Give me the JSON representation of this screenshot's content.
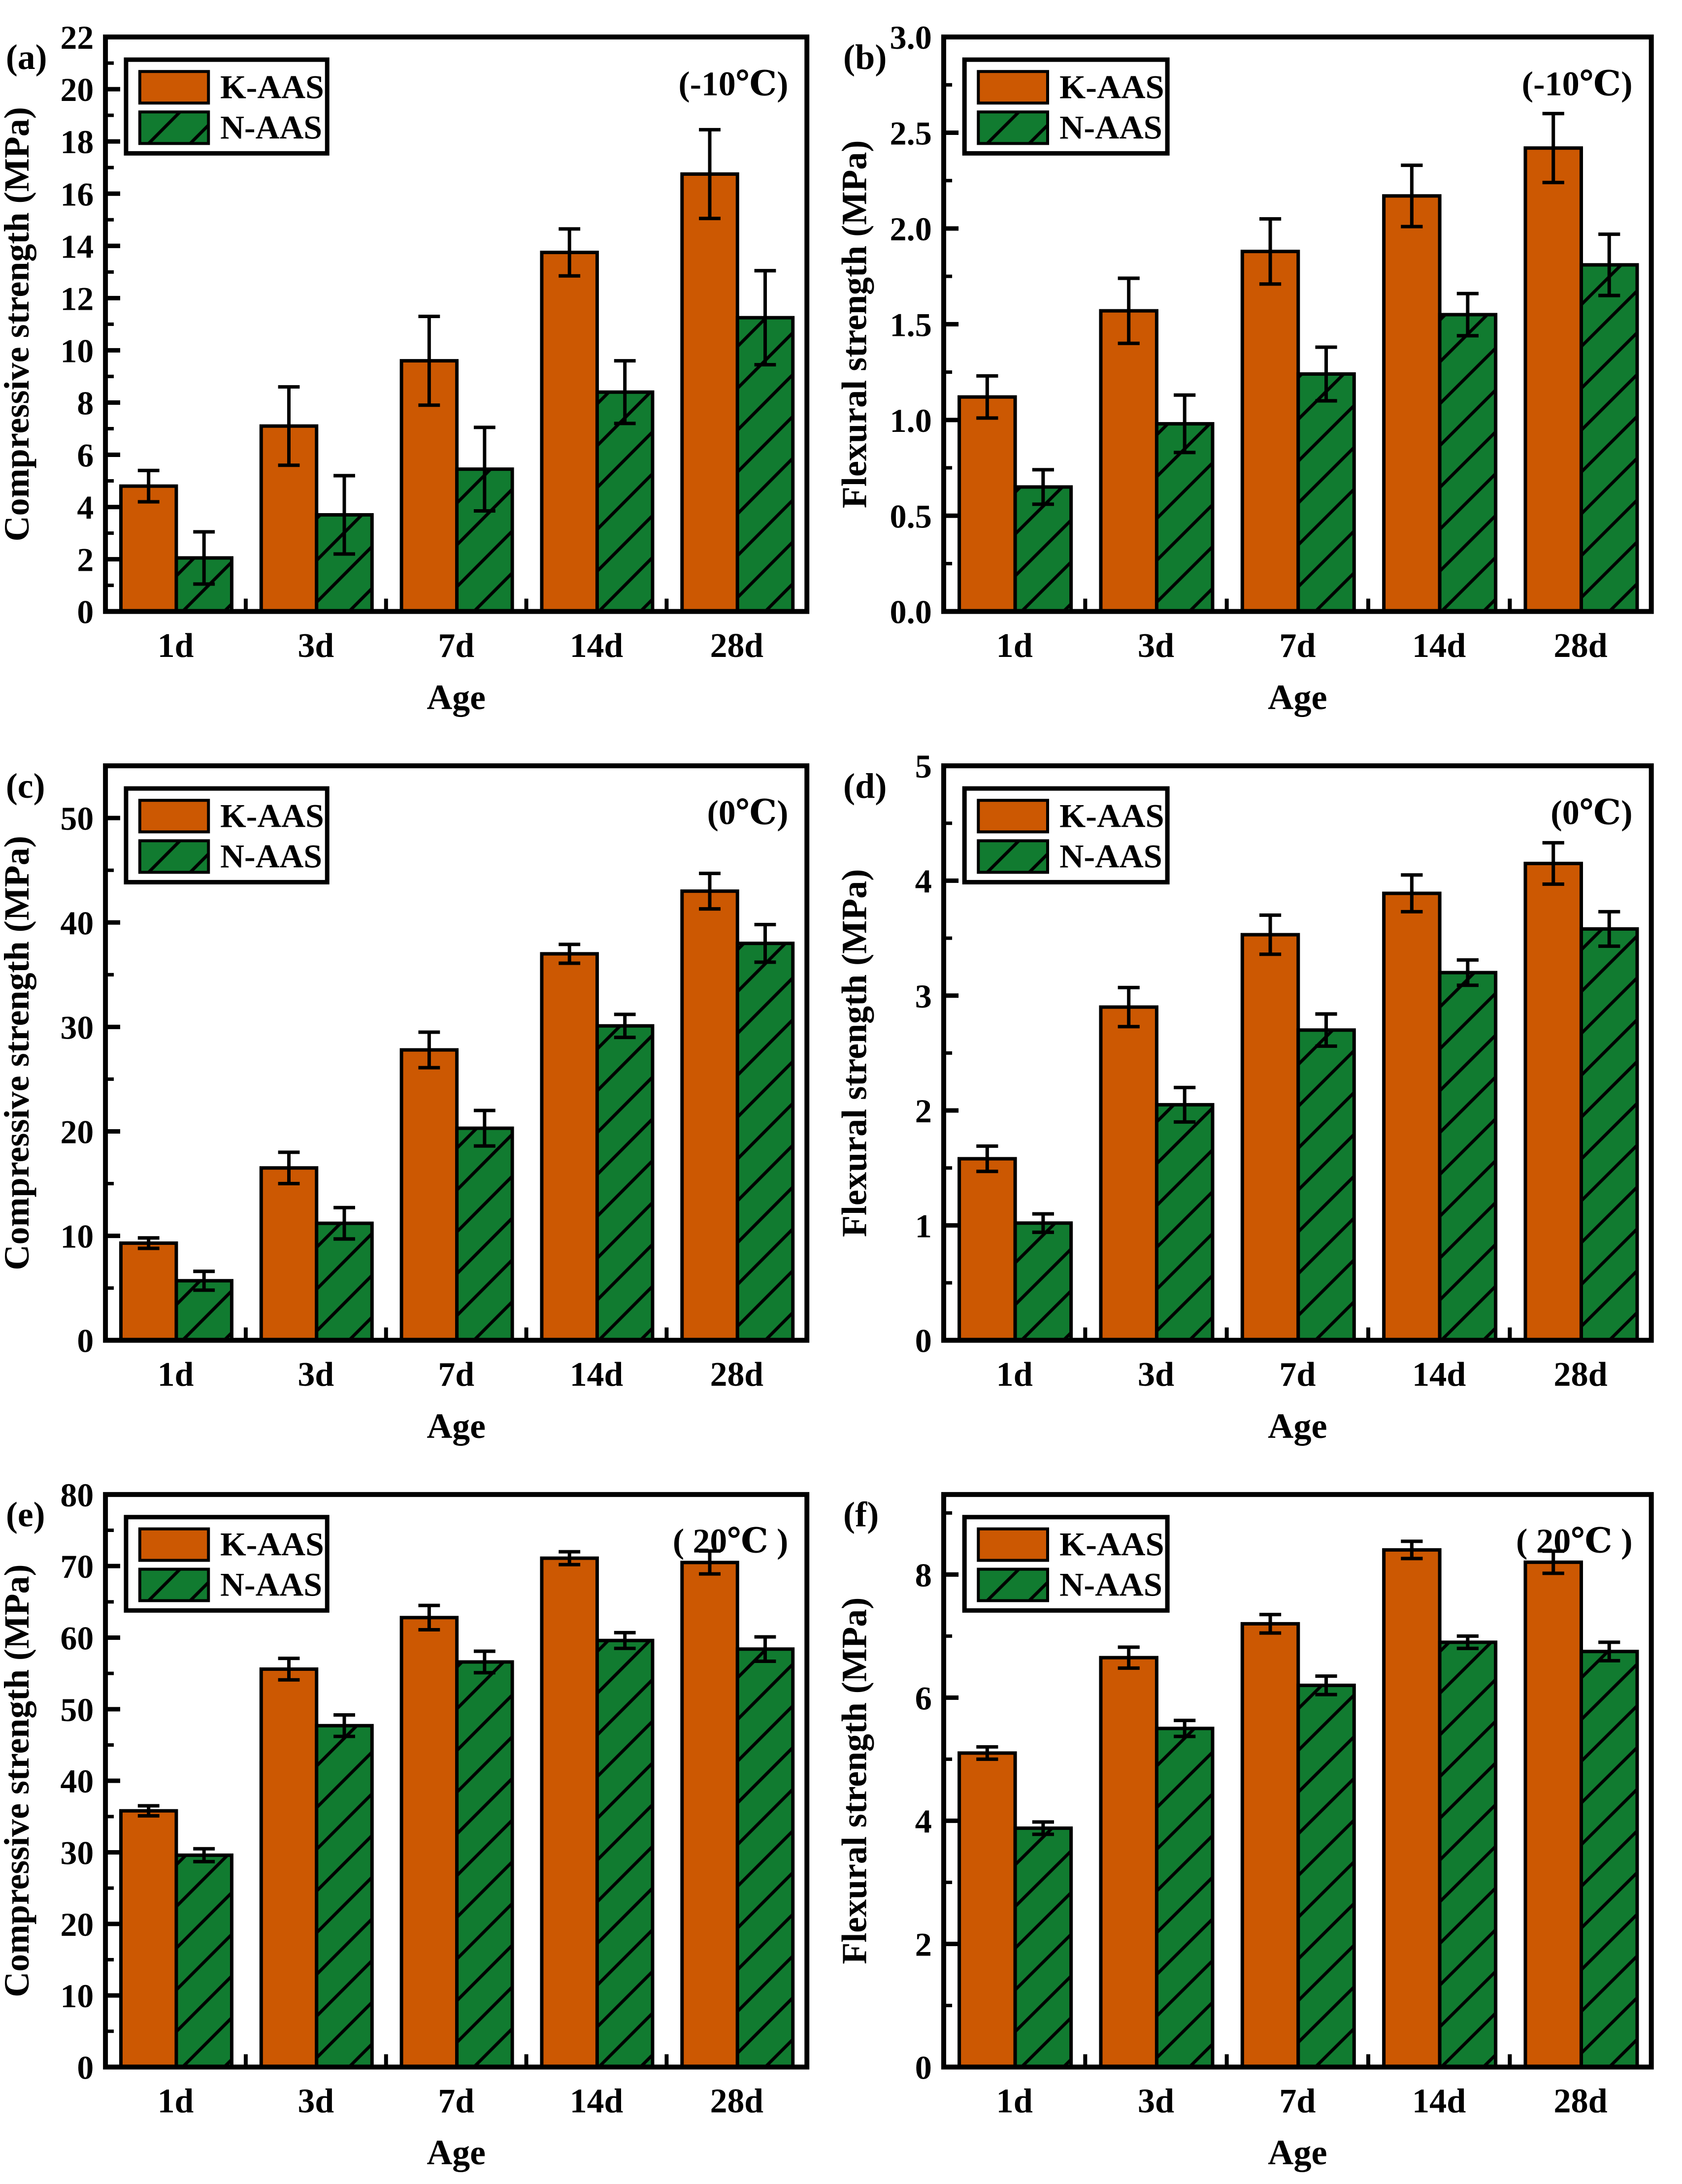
{
  "figure": {
    "colors": {
      "k_aas_fill": "#CC5802",
      "n_aas_fill": "#117B30",
      "axis": "#000000",
      "background": "#FFFFFF"
    },
    "series_names": [
      "K-AAS",
      "N-AAS"
    ]
  },
  "chart_data": [
    {
      "type": "bar",
      "panel_label": "(a)",
      "annotation": "(-10℃)",
      "ylabel": "Compressive strength (MPa)",
      "xlabel": "Age",
      "categories": [
        "1d",
        "3d",
        "7d",
        "14d",
        "28d"
      ],
      "series": [
        {
          "name": "K-AAS",
          "values": [
            4.8,
            7.1,
            9.6,
            13.75,
            16.75
          ],
          "errors": [
            0.6,
            1.5,
            1.7,
            0.9,
            1.7
          ]
        },
        {
          "name": "N-AAS",
          "values": [
            2.05,
            3.7,
            5.45,
            8.4,
            11.25
          ],
          "errors": [
            1.0,
            1.5,
            1.6,
            1.2,
            1.8
          ]
        }
      ],
      "ylim": [
        0,
        22
      ],
      "ytick_major": 2,
      "ytick_minor": 1,
      "ytick_decimals": 0,
      "legend_position": "top-left",
      "grid": false
    },
    {
      "type": "bar",
      "panel_label": "(b)",
      "annotation": "(-10℃)",
      "ylabel": "Flexural strength (MPa)",
      "xlabel": "Age",
      "categories": [
        "1d",
        "3d",
        "7d",
        "14d",
        "28d"
      ],
      "series": [
        {
          "name": "K-AAS",
          "values": [
            1.12,
            1.57,
            1.88,
            2.17,
            2.42
          ],
          "errors": [
            0.11,
            0.17,
            0.17,
            0.16,
            0.18
          ]
        },
        {
          "name": "N-AAS",
          "values": [
            0.65,
            0.98,
            1.24,
            1.55,
            1.81
          ],
          "errors": [
            0.09,
            0.15,
            0.14,
            0.11,
            0.16
          ]
        }
      ],
      "ylim": [
        0,
        3.0
      ],
      "ytick_major": 0.5,
      "ytick_minor": 0.25,
      "ytick_decimals": 1,
      "legend_position": "top-left",
      "grid": false
    },
    {
      "type": "bar",
      "panel_label": "(c)",
      "annotation": "(0℃)",
      "ylabel": "Compressive strength (MPa)",
      "xlabel": "Age",
      "categories": [
        "1d",
        "3d",
        "7d",
        "14d",
        "28d"
      ],
      "series": [
        {
          "name": "K-AAS",
          "values": [
            9.3,
            16.5,
            27.8,
            37.0,
            43.0
          ],
          "errors": [
            0.5,
            1.5,
            1.7,
            0.9,
            1.7
          ]
        },
        {
          "name": "N-AAS",
          "values": [
            5.7,
            11.2,
            20.3,
            30.1,
            38.0
          ],
          "errors": [
            0.9,
            1.5,
            1.7,
            1.1,
            1.8
          ]
        }
      ],
      "ylim": [
        0,
        55
      ],
      "ytick_major": 10,
      "ytick_minor": 5,
      "ytick_decimals": 0,
      "legend_position": "top-left",
      "grid": false
    },
    {
      "type": "bar",
      "panel_label": "(d)",
      "annotation": "(0℃)",
      "ylabel": "Flexural strength (MPa)",
      "xlabel": "Age",
      "categories": [
        "1d",
        "3d",
        "7d",
        "14d",
        "28d"
      ],
      "series": [
        {
          "name": "K-AAS",
          "values": [
            1.58,
            2.9,
            3.53,
            3.89,
            4.15
          ],
          "errors": [
            0.11,
            0.17,
            0.17,
            0.16,
            0.18
          ]
        },
        {
          "name": "N-AAS",
          "values": [
            1.02,
            2.05,
            2.7,
            3.2,
            3.58
          ],
          "errors": [
            0.08,
            0.15,
            0.14,
            0.11,
            0.15
          ]
        }
      ],
      "ylim": [
        0,
        5
      ],
      "ytick_major": 1,
      "ytick_minor": 0.5,
      "ytick_decimals": 0,
      "legend_position": "top-left",
      "grid": false
    },
    {
      "type": "bar",
      "panel_label": "(e)",
      "annotation": "（20℃）",
      "ylabel": "Compressive strength (MPa)",
      "xlabel": "Age",
      "categories": [
        "1d",
        "3d",
        "7d",
        "14d",
        "28d"
      ],
      "series": [
        {
          "name": "K-AAS",
          "values": [
            35.8,
            55.6,
            62.8,
            71.1,
            70.5
          ],
          "errors": [
            0.7,
            1.5,
            1.7,
            0.9,
            1.6
          ]
        },
        {
          "name": "N-AAS",
          "values": [
            29.6,
            47.7,
            56.6,
            59.6,
            58.4
          ],
          "errors": [
            0.9,
            1.5,
            1.5,
            1.1,
            1.7
          ]
        }
      ],
      "ylim": [
        0,
        80
      ],
      "ytick_major": 10,
      "ytick_minor": 5,
      "ytick_decimals": 0,
      "legend_position": "top-left",
      "grid": false
    },
    {
      "type": "bar",
      "panel_label": "(f)",
      "annotation": "（20℃）",
      "ylabel": "Flexural strength (MPa)",
      "xlabel": "Age",
      "categories": [
        "1d",
        "3d",
        "7d",
        "14d",
        "28d"
      ],
      "series": [
        {
          "name": "K-AAS",
          "values": [
            5.1,
            6.65,
            7.2,
            8.4,
            8.2
          ],
          "errors": [
            0.1,
            0.17,
            0.15,
            0.14,
            0.18
          ]
        },
        {
          "name": "N-AAS",
          "values": [
            3.88,
            5.5,
            6.2,
            6.9,
            6.75
          ],
          "errors": [
            0.1,
            0.13,
            0.15,
            0.1,
            0.15
          ]
        }
      ],
      "ylim": [
        0,
        9.3
      ],
      "ytick_major": 2,
      "ytick_minor": 1,
      "ytick_decimals": 0,
      "legend_position": "top-left",
      "grid": false
    }
  ]
}
